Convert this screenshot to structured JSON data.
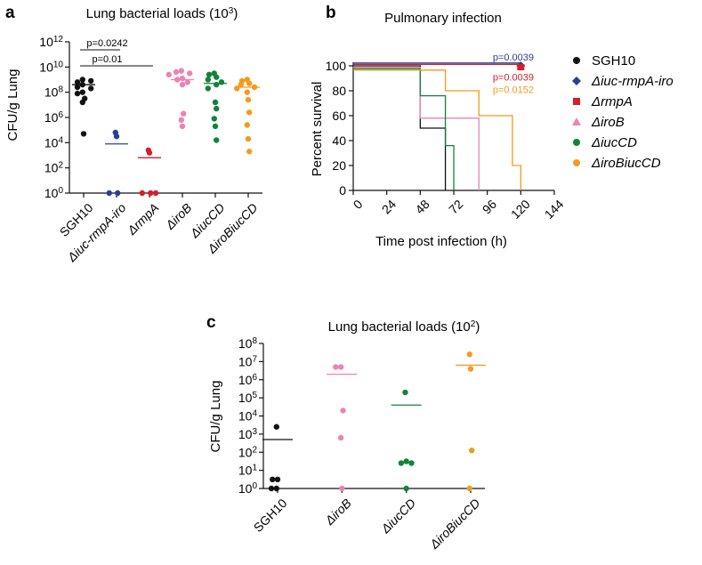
{
  "panels": {
    "a": {
      "letter": "a"
    },
    "b": {
      "letter": "b"
    },
    "c": {
      "letter": "c"
    }
  },
  "colors": {
    "SGH10": "#111111",
    "iuc_rmpA_iro": "#2b3f8f",
    "rmpA": "#d71e2b",
    "iroB": "#ee82b4",
    "iucCD": "#11833a",
    "iroBiucCD": "#f39b1c"
  },
  "legend": [
    {
      "label": "SGH10",
      "italic": false,
      "color": "#111111",
      "marker": "circle"
    },
    {
      "label": "Δiuc-rmpA-iro",
      "italic": true,
      "color": "#2b3f8f",
      "marker": "diamond"
    },
    {
      "label": "ΔrmpA",
      "italic": true,
      "color": "#d71e2b",
      "marker": "square"
    },
    {
      "label": "ΔiroB",
      "italic": true,
      "color": "#ee82b4",
      "marker": "triangle"
    },
    {
      "label": "ΔiucCD",
      "italic": true,
      "color": "#11833a",
      "marker": "circle"
    },
    {
      "label": "ΔiroBiucCD",
      "italic": true,
      "color": "#f39b1c",
      "marker": "circle"
    }
  ],
  "chart_data": [
    {
      "id": "a",
      "type": "scatter",
      "title_base": "Lung bacterial loads (10",
      "title_exp": "3",
      "title_tail": ")",
      "ylabel": "CFU/g Lung",
      "ylog": true,
      "ylim_log10": [
        0,
        12
      ],
      "yticks": [
        {
          "base": "10",
          "exp": "0",
          "log": 0
        },
        {
          "base": "10",
          "exp": "2",
          "log": 2
        },
        {
          "base": "10",
          "exp": "4",
          "log": 4
        },
        {
          "base": "10",
          "exp": "6",
          "log": 6
        },
        {
          "base": "10",
          "exp": "8",
          "log": 8
        },
        {
          "base": "10",
          "exp": "10",
          "log": 10
        },
        {
          "base": "10",
          "exp": "12",
          "log": 12
        }
      ],
      "categories": [
        "SGH10",
        "Δiuc-rmpA-iro",
        "ΔrmpA",
        "ΔiroB",
        "ΔiucCD",
        "ΔiroBiucCD"
      ],
      "category_italic": [
        false,
        true,
        true,
        true,
        true,
        true
      ],
      "category_colors": [
        "#111111",
        "#2b3f8f",
        "#d71e2b",
        "#ee82b4",
        "#11833a",
        "#f39b1c"
      ],
      "points_log10": [
        [
          9.0,
          8.8,
          8.9,
          8.6,
          8.4,
          8.3,
          8.0,
          7.9,
          7.5,
          7.2,
          4.7
        ],
        [
          4.8,
          4.5,
          0.0,
          0.0
        ],
        [
          3.4,
          3.2,
          0.0,
          0.0,
          0.0
        ],
        [
          9.7,
          9.6,
          9.5,
          9.4,
          9.1,
          9.0,
          8.8,
          8.6,
          6.3,
          5.8,
          5.3
        ],
        [
          9.5,
          9.4,
          9.2,
          9.0,
          8.8,
          8.6,
          8.3,
          7.2,
          6.7,
          5.9,
          5.3,
          4.2
        ],
        [
          9.0,
          8.9,
          8.7,
          8.6,
          8.4,
          8.3,
          8.0,
          7.4,
          6.4,
          5.4,
          4.3,
          3.3
        ]
      ],
      "means_log10": [
        8.6,
        3.9,
        2.8,
        9.0,
        8.7,
        8.4
      ],
      "comparisons": [
        {
          "label": "p=0.0242",
          "from": 0,
          "to": 1
        },
        {
          "label": "p=0.01",
          "from": 0,
          "to": 2
        }
      ]
    },
    {
      "id": "b",
      "type": "line",
      "subtype": "kaplan-meier",
      "title": "Pulmonary infection",
      "xlabel": "Time post infection (h)",
      "ylabel": "Percent survival",
      "xlim": [
        0,
        144
      ],
      "ylim": [
        0,
        100
      ],
      "xticks": [
        0,
        24,
        48,
        72,
        96,
        120,
        144
      ],
      "yticks": [
        0,
        20,
        40,
        60,
        80,
        100
      ],
      "series": [
        {
          "name": "SGH10",
          "color": "#111111",
          "points": [
            [
              0,
              100
            ],
            [
              48,
              100
            ],
            [
              48,
              50
            ],
            [
              66,
              50
            ],
            [
              66,
              0
            ]
          ]
        },
        {
          "name": "Δiuc-rmpA-iro",
          "color": "#2b3f8f",
          "points": [
            [
              0,
              100
            ],
            [
              120,
              100
            ]
          ]
        },
        {
          "name": "ΔrmpA",
          "color": "#d71e2b",
          "points": [
            [
              0,
              100
            ],
            [
              120,
              100
            ]
          ]
        },
        {
          "name": "ΔiroB",
          "color": "#ee82b4",
          "points": [
            [
              0,
              100
            ],
            [
              48,
              100
            ],
            [
              48,
              58
            ],
            [
              90,
              58
            ],
            [
              90,
              0
            ]
          ]
        },
        {
          "name": "ΔiucCD",
          "color": "#11833a",
          "points": [
            [
              0,
              100
            ],
            [
              48,
              100
            ],
            [
              48,
              76
            ],
            [
              66,
              76
            ],
            [
              66,
              36
            ],
            [
              72,
              36
            ],
            [
              72,
              0
            ]
          ]
        },
        {
          "name": "ΔiroBiucCD",
          "color": "#f39b1c",
          "points": [
            [
              0,
              100
            ],
            [
              66,
              100
            ],
            [
              66,
              80
            ],
            [
              90,
              80
            ],
            [
              90,
              60
            ],
            [
              114,
              60
            ],
            [
              114,
              20
            ],
            [
              120,
              20
            ],
            [
              120,
              0
            ]
          ]
        }
      ],
      "p_labels": [
        {
          "label": "p=0.0039",
          "color": "#2b3f8f",
          "y": 107
        },
        {
          "label": "p=0.0039",
          "color": "#d71e2b",
          "y": 91
        },
        {
          "label": "p=0.0152",
          "color": "#f39b1c",
          "y": 81
        }
      ]
    },
    {
      "id": "c",
      "type": "scatter",
      "title_base": "Lung bacterial loads (10",
      "title_exp": "2",
      "title_tail": ")",
      "ylabel": "CFU/g Lung",
      "ylog": true,
      "ylim_log10": [
        0,
        8
      ],
      "yticks": [
        {
          "base": "10",
          "exp": "0",
          "log": 0
        },
        {
          "base": "10",
          "exp": "1",
          "log": 1
        },
        {
          "base": "10",
          "exp": "2",
          "log": 2
        },
        {
          "base": "10",
          "exp": "3",
          "log": 3
        },
        {
          "base": "10",
          "exp": "4",
          "log": 4
        },
        {
          "base": "10",
          "exp": "5",
          "log": 5
        },
        {
          "base": "10",
          "exp": "6",
          "log": 6
        },
        {
          "base": "10",
          "exp": "7",
          "log": 7
        },
        {
          "base": "10",
          "exp": "8",
          "log": 8
        }
      ],
      "categories": [
        "SGH10",
        "ΔiroB",
        "ΔiucCD",
        "ΔiroBiucCD"
      ],
      "category_italic": [
        false,
        true,
        true,
        true
      ],
      "category_colors": [
        "#111111",
        "#ee82b4",
        "#11833a",
        "#f39b1c"
      ],
      "points_log10": [
        [
          3.4,
          0.5,
          0.5,
          0.0,
          0.0
        ],
        [
          6.7,
          6.7,
          4.3,
          2.8,
          0.0
        ],
        [
          5.3,
          1.5,
          1.4,
          1.4,
          0.0
        ],
        [
          7.4,
          6.6,
          2.1,
          0.0
        ]
      ],
      "means_log10": [
        2.7,
        6.3,
        4.6,
        6.8
      ],
      "comparisons": []
    }
  ]
}
